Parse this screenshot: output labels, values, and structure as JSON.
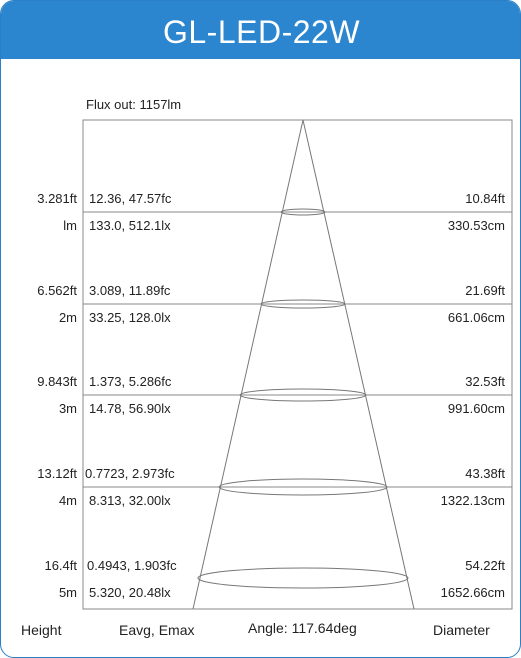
{
  "title": "GL-LED-22W",
  "flux": "Flux out: 1157lm",
  "rows": [
    {
      "height_ft": "3.281ft",
      "height_m": "lm",
      "fc": "12.36, 47.57fc",
      "lx": "133.0, 512.1lx",
      "dia_ft": "10.84ft",
      "dia_cm": "330.53cm"
    },
    {
      "height_ft": "6.562ft",
      "height_m": "2m",
      "fc": "3.089, 11.89fc",
      "lx": "33.25, 128.0lx",
      "dia_ft": "21.69ft",
      "dia_cm": "661.06cm"
    },
    {
      "height_ft": "9.843ft",
      "height_m": "3m",
      "fc": "1.373, 5.286fc",
      "lx": "14.78, 56.90lx",
      "dia_ft": "32.53ft",
      "dia_cm": "991.60cm"
    },
    {
      "height_ft": "13.12ft",
      "height_m": "4m",
      "fc": "0.7723, 2.973fc",
      "lx": "8.313, 32.00lx",
      "dia_ft": "43.38ft",
      "dia_cm": "1322.13cm"
    },
    {
      "height_ft": "16.4ft",
      "height_m": "5m",
      "fc": "0.4943, 1.903fc",
      "lx": "5.320, 20.48lx",
      "dia_ft": "54.22ft",
      "dia_cm": "1652.66cm"
    }
  ],
  "footer": {
    "height": "Height",
    "eavg": "Eavg, Emax",
    "angle": "Angle: 117.64deg",
    "diameter": "Diameter"
  }
}
